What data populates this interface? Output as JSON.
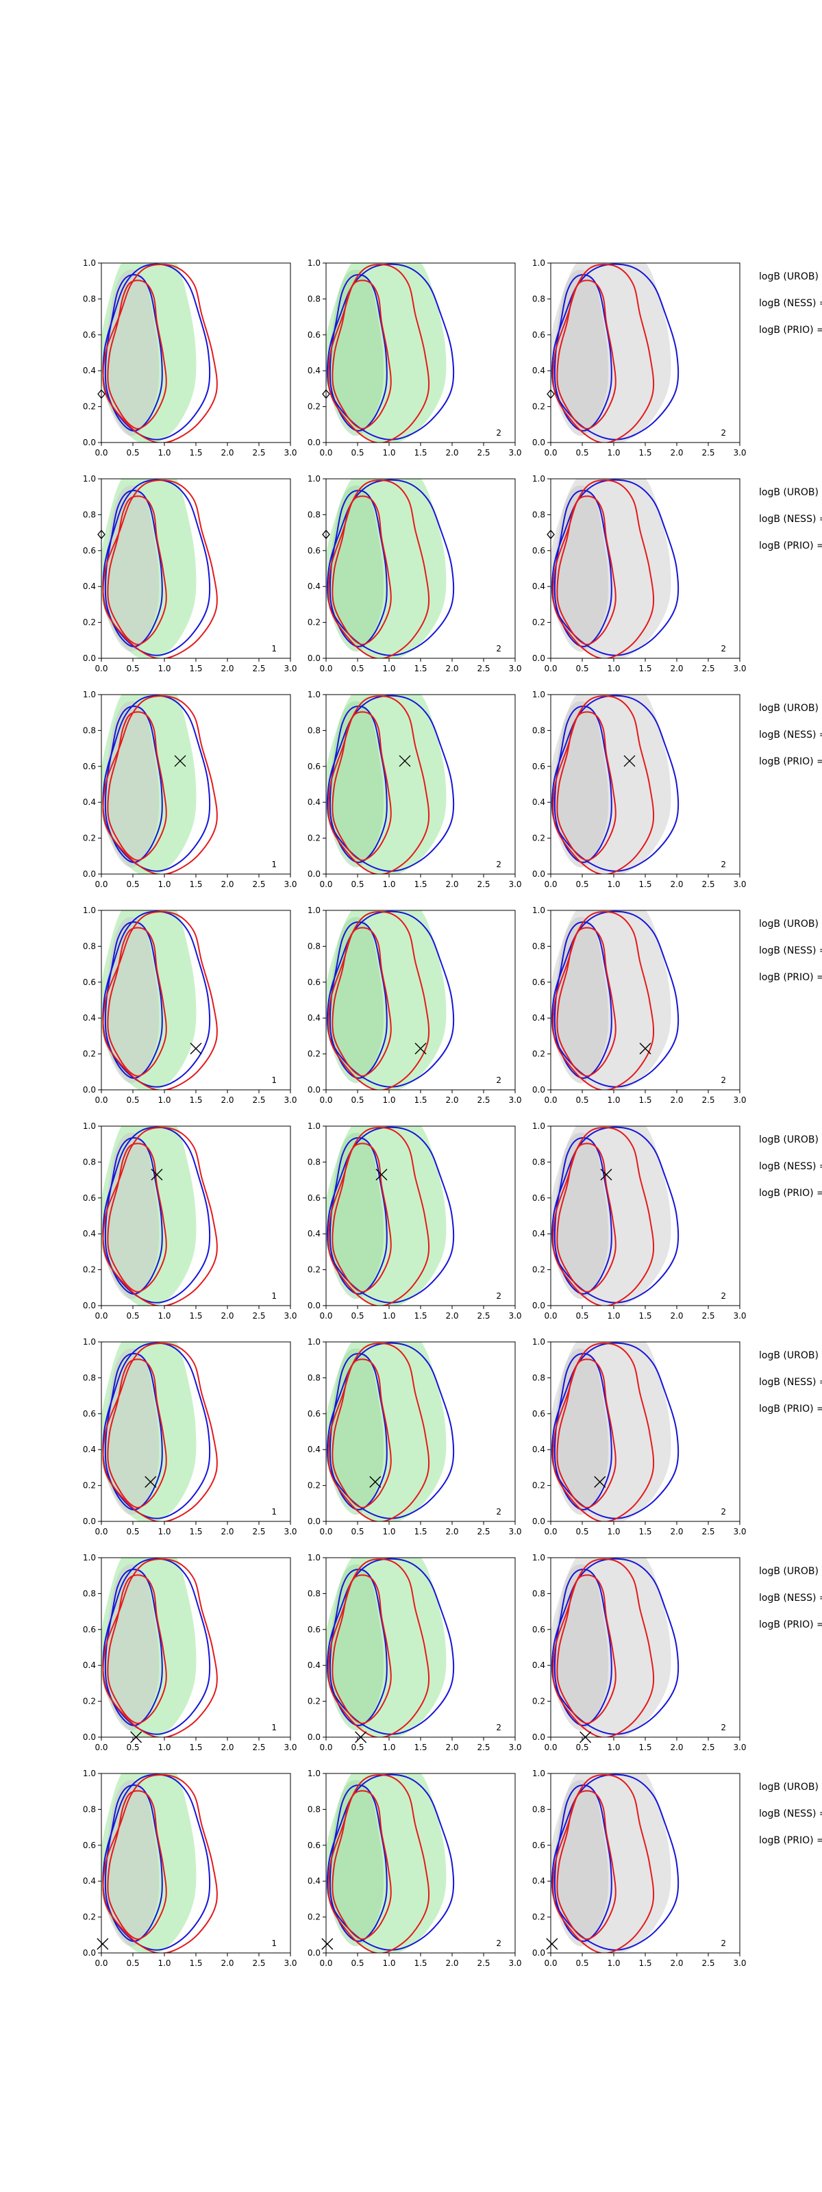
{
  "chart_data": {
    "type": "contour",
    "description_grid": "8 rows x 3 columns of 2D contour panels",
    "x_ticks": [
      "0.0",
      "0.5",
      "1.0",
      "1.5",
      "2.0",
      "2.5",
      "3.0"
    ],
    "y_ticks": [
      "0.0",
      "0.2",
      "0.4",
      "0.6",
      "0.8",
      "1.0"
    ],
    "xlim": [
      0,
      3
    ],
    "ylim": [
      0,
      1
    ],
    "side_labels": [
      "logB (UROB) =",
      "logB (NESS) =",
      "logB (PRIO) ="
    ],
    "colors": {
      "red": "#e41a1c",
      "blue": "#1515d8",
      "green_fill": "#b7ecb7",
      "gray_fill": "#dcdcdc",
      "marker": "#000000"
    },
    "rows": [
      {
        "marker": [
          0.0,
          0.27
        ],
        "markers_shape": "diamond",
        "corner": [
          "",
          "2",
          "2"
        ]
      },
      {
        "marker": [
          0.0,
          0.69
        ],
        "markers_shape": "diamond",
        "corner": [
          "1",
          "2",
          "2"
        ]
      },
      {
        "marker": [
          1.25,
          0.63
        ],
        "markers_shape": "x",
        "corner": [
          "1",
          "2",
          "2"
        ]
      },
      {
        "marker": [
          1.5,
          0.23
        ],
        "markers_shape": "x",
        "corner": [
          "1",
          "2",
          "2"
        ]
      },
      {
        "marker": [
          0.88,
          0.73
        ],
        "markers_shape": "x",
        "corner": [
          "1",
          "2",
          "2"
        ]
      },
      {
        "marker": [
          0.78,
          0.22
        ],
        "markers_shape": "x",
        "corner": [
          "1",
          "2",
          "2"
        ]
      },
      {
        "marker": [
          0.55,
          0.0
        ],
        "markers_shape": "x",
        "corner": [
          "1",
          "2",
          "2"
        ]
      },
      {
        "marker": [
          0.02,
          0.05
        ],
        "markers_shape": "x",
        "corner": [
          "1",
          "2",
          "2"
        ]
      }
    ]
  }
}
